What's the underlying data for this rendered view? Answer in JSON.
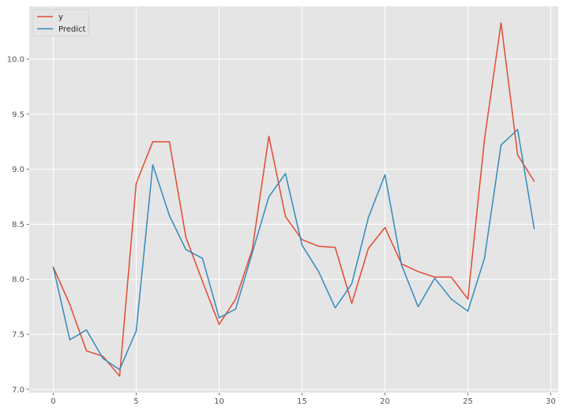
{
  "chart_data": {
    "type": "line",
    "x": [
      0,
      1,
      2,
      3,
      4,
      5,
      6,
      7,
      8,
      9,
      10,
      11,
      12,
      13,
      14,
      15,
      16,
      17,
      18,
      19,
      20,
      21,
      22,
      23,
      24,
      25,
      26,
      27,
      28,
      29
    ],
    "series": [
      {
        "name": "y",
        "color": "#e24a33",
        "values": [
          8.11,
          7.77,
          7.35,
          7.3,
          7.12,
          8.87,
          9.25,
          9.25,
          8.38,
          7.98,
          7.59,
          7.82,
          8.27,
          9.3,
          8.57,
          8.36,
          8.3,
          8.29,
          7.78,
          8.28,
          8.47,
          8.14,
          8.07,
          8.02,
          8.02,
          7.82,
          9.27,
          10.33,
          9.13,
          8.89
        ]
      },
      {
        "name": "Predict",
        "color": "#348abd",
        "values": [
          8.11,
          7.45,
          7.54,
          7.28,
          7.18,
          7.53,
          9.04,
          8.58,
          8.27,
          8.19,
          7.65,
          7.73,
          8.24,
          8.75,
          8.96,
          8.31,
          8.07,
          7.74,
          7.96,
          8.56,
          8.95,
          8.13,
          7.75,
          8.01,
          7.82,
          7.71,
          8.19,
          9.22,
          9.36,
          8.46
        ]
      }
    ],
    "xlim": [
      -1.45,
      30.45
    ],
    "ylim": [
      6.97,
      10.48
    ],
    "xticks": [
      0,
      5,
      10,
      15,
      20,
      25,
      30
    ],
    "yticks": [
      7.0,
      7.5,
      8.0,
      8.5,
      9.0,
      9.5,
      10.0
    ],
    "xtick_labels": [
      "0",
      "5",
      "10",
      "15",
      "20",
      "25",
      "30"
    ],
    "ytick_labels": [
      "7.0",
      "7.5",
      "8.0",
      "8.5",
      "9.0",
      "9.5",
      "10.0"
    ],
    "grid": true,
    "legend_position": "top-left",
    "style": "ggplot",
    "background_color": "#e5e5e5",
    "grid_color": "#ffffff"
  }
}
